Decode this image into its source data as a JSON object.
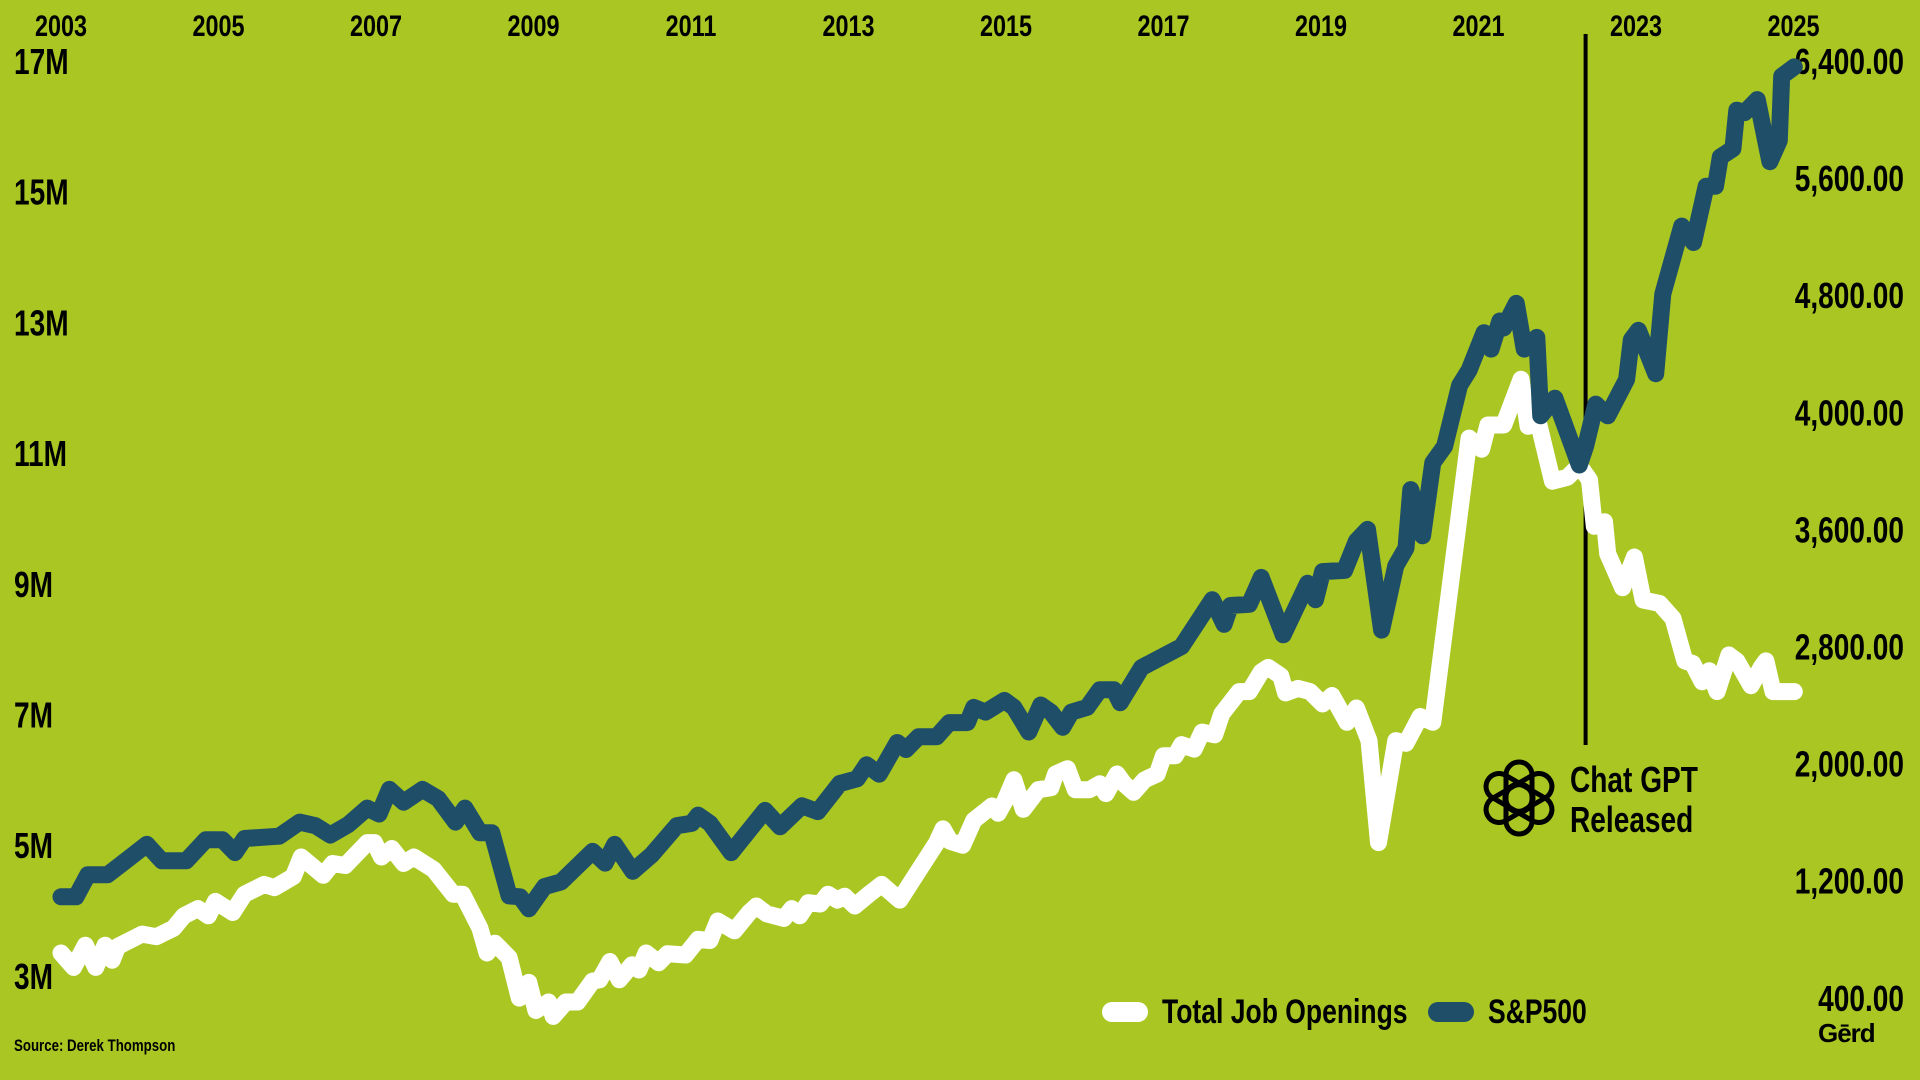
{
  "colors": {
    "background": "#a9c623",
    "job_openings": "#ffffff",
    "sp500": "#1f4e69",
    "annotation": "#000000"
  },
  "source": "Source: Derek Thompson",
  "brand_logo": "Gērd",
  "annotation": {
    "line1": "Chat GPT",
    "line2": "Released",
    "icon": "openai-logo-icon"
  },
  "legend": [
    {
      "label": "Total Job Openings",
      "color": "#ffffff"
    },
    {
      "label": "S&P500",
      "color": "#1f4e69"
    }
  ],
  "chart_data": {
    "type": "line",
    "title": "",
    "x_ticks": [
      "2003",
      "2005",
      "2007",
      "2009",
      "2011",
      "2013",
      "2015",
      "2017",
      "2019",
      "2021",
      "2023",
      "2025"
    ],
    "x_tick_values": [
      2003,
      2005,
      2007,
      2009,
      2011,
      2013,
      2015,
      2017,
      2019,
      2021,
      2023,
      2025
    ],
    "xlim": [
      2003,
      2025
    ],
    "y_left_ticks": [
      "17M",
      "15M",
      "13M",
      "11M",
      "9M",
      "7M",
      "5M",
      "3M"
    ],
    "y_left_tick_values": [
      17,
      15,
      13,
      11,
      9,
      7,
      5,
      3
    ],
    "y_left_lim": [
      3,
      17
    ],
    "y_right_ticks": [
      "6,400.00",
      "5,600.00",
      "4,800.00",
      "4,000.00",
      "3,600.00",
      "2,800.00",
      "2,000.00",
      "1,200.00",
      "400.00"
    ],
    "y_right_tick_values": [
      6400,
      5600,
      4800,
      4000,
      3600,
      2800,
      2000,
      1200,
      400
    ],
    "grid": false,
    "legend_position": "bottom-right",
    "annotation_x": 2022.36,
    "series": [
      {
        "name": "Total Job Openings",
        "axis": "left",
        "unit": "millions",
        "points": [
          [
            2003.0,
            3.35
          ],
          [
            2003.16,
            3.13
          ],
          [
            2003.31,
            3.47
          ],
          [
            2003.44,
            3.13
          ],
          [
            2003.56,
            3.47
          ],
          [
            2003.65,
            3.24
          ],
          [
            2003.72,
            3.45
          ],
          [
            2004.03,
            3.64
          ],
          [
            2004.21,
            3.6
          ],
          [
            2004.43,
            3.73
          ],
          [
            2004.56,
            3.92
          ],
          [
            2004.74,
            4.03
          ],
          [
            2004.87,
            3.92
          ],
          [
            2004.96,
            4.14
          ],
          [
            2005.18,
            3.97
          ],
          [
            2005.33,
            4.25
          ],
          [
            2005.58,
            4.4
          ],
          [
            2005.71,
            4.35
          ],
          [
            2005.95,
            4.52
          ],
          [
            2006.05,
            4.82
          ],
          [
            2006.33,
            4.54
          ],
          [
            2006.45,
            4.72
          ],
          [
            2006.61,
            4.69
          ],
          [
            2006.89,
            5.04
          ],
          [
            2006.98,
            5.04
          ],
          [
            2007.07,
            4.82
          ],
          [
            2007.2,
            4.95
          ],
          [
            2007.35,
            4.72
          ],
          [
            2007.48,
            4.82
          ],
          [
            2007.73,
            4.63
          ],
          [
            2007.98,
            4.25
          ],
          [
            2008.1,
            4.25
          ],
          [
            2008.32,
            3.73
          ],
          [
            2008.41,
            3.35
          ],
          [
            2008.51,
            3.5
          ],
          [
            2008.69,
            3.28
          ],
          [
            2008.82,
            2.66
          ],
          [
            2008.94,
            2.9
          ],
          [
            2009.03,
            2.47
          ],
          [
            2009.19,
            2.6
          ],
          [
            2009.25,
            2.38
          ],
          [
            2009.41,
            2.6
          ],
          [
            2009.56,
            2.6
          ],
          [
            2009.75,
            2.92
          ],
          [
            2009.84,
            2.94
          ],
          [
            2009.97,
            3.22
          ],
          [
            2010.09,
            2.94
          ],
          [
            2010.25,
            3.17
          ],
          [
            2010.34,
            3.09
          ],
          [
            2010.43,
            3.35
          ],
          [
            2010.59,
            3.2
          ],
          [
            2010.7,
            3.34
          ],
          [
            2010.93,
            3.32
          ],
          [
            2011.09,
            3.56
          ],
          [
            2011.24,
            3.54
          ],
          [
            2011.34,
            3.84
          ],
          [
            2011.55,
            3.69
          ],
          [
            2011.74,
            3.97
          ],
          [
            2011.83,
            4.07
          ],
          [
            2011.96,
            3.95
          ],
          [
            2012.18,
            3.88
          ],
          [
            2012.28,
            4.03
          ],
          [
            2012.38,
            3.92
          ],
          [
            2012.49,
            4.12
          ],
          [
            2012.64,
            4.1
          ],
          [
            2012.74,
            4.25
          ],
          [
            2012.86,
            4.16
          ],
          [
            2012.95,
            4.22
          ],
          [
            2013.08,
            4.07
          ],
          [
            2013.26,
            4.25
          ],
          [
            2013.42,
            4.4
          ],
          [
            2013.65,
            4.16
          ],
          [
            2014.12,
            5.04
          ],
          [
            2014.2,
            5.25
          ],
          [
            2014.29,
            5.06
          ],
          [
            2014.45,
            5.0
          ],
          [
            2014.59,
            5.38
          ],
          [
            2014.82,
            5.6
          ],
          [
            2014.9,
            5.49
          ],
          [
            2014.98,
            5.66
          ],
          [
            2015.1,
            6.0
          ],
          [
            2015.22,
            5.55
          ],
          [
            2015.41,
            5.85
          ],
          [
            2015.57,
            5.88
          ],
          [
            2015.63,
            6.09
          ],
          [
            2015.78,
            6.17
          ],
          [
            2015.88,
            5.85
          ],
          [
            2016.06,
            5.85
          ],
          [
            2016.19,
            5.94
          ],
          [
            2016.27,
            5.79
          ],
          [
            2016.41,
            6.09
          ],
          [
            2016.5,
            5.94
          ],
          [
            2016.62,
            5.81
          ],
          [
            2016.76,
            6.0
          ],
          [
            2016.92,
            6.09
          ],
          [
            2017.0,
            6.37
          ],
          [
            2017.15,
            6.37
          ],
          [
            2017.23,
            6.54
          ],
          [
            2017.39,
            6.47
          ],
          [
            2017.49,
            6.73
          ],
          [
            2017.65,
            6.69
          ],
          [
            2017.74,
            7.01
          ],
          [
            2017.96,
            7.35
          ],
          [
            2018.09,
            7.35
          ],
          [
            2018.24,
            7.65
          ],
          [
            2018.33,
            7.72
          ],
          [
            2018.49,
            7.59
          ],
          [
            2018.55,
            7.33
          ],
          [
            2018.71,
            7.4
          ],
          [
            2018.86,
            7.35
          ],
          [
            2019.02,
            7.16
          ],
          [
            2019.14,
            7.29
          ],
          [
            2019.33,
            6.88
          ],
          [
            2019.45,
            7.1
          ],
          [
            2019.61,
            6.6
          ],
          [
            2019.73,
            5.04
          ],
          [
            2019.95,
            6.6
          ],
          [
            2020.08,
            6.56
          ],
          [
            2020.26,
            6.97
          ],
          [
            2020.42,
            6.88
          ],
          [
            2020.88,
            11.23
          ],
          [
            2021.04,
            11.06
          ],
          [
            2021.12,
            11.43
          ],
          [
            2021.32,
            11.43
          ],
          [
            2021.54,
            12.13
          ],
          [
            2021.63,
            11.41
          ],
          [
            2021.76,
            11.47
          ],
          [
            2021.94,
            10.57
          ],
          [
            2022.13,
            10.63
          ],
          [
            2022.28,
            10.81
          ],
          [
            2022.41,
            10.59
          ],
          [
            2022.47,
            9.88
          ],
          [
            2022.6,
            9.95
          ],
          [
            2022.64,
            9.46
          ],
          [
            2022.83,
            8.94
          ],
          [
            2022.98,
            9.41
          ],
          [
            2023.09,
            8.75
          ],
          [
            2023.3,
            8.7
          ],
          [
            2023.47,
            8.47
          ],
          [
            2023.62,
            7.82
          ],
          [
            2023.72,
            7.78
          ],
          [
            2023.84,
            7.5
          ],
          [
            2023.93,
            7.67
          ],
          [
            2024.03,
            7.35
          ],
          [
            2024.18,
            7.91
          ],
          [
            2024.28,
            7.82
          ],
          [
            2024.46,
            7.44
          ],
          [
            2024.59,
            7.72
          ],
          [
            2024.65,
            7.82
          ],
          [
            2024.74,
            7.35
          ],
          [
            2025.01,
            7.35
          ]
        ]
      },
      {
        "name": "S&P500",
        "axis": "right",
        "unit": "index points",
        "points": [
          [
            2003.0,
            1090
          ],
          [
            2003.19,
            1090
          ],
          [
            2003.34,
            1240
          ],
          [
            2003.59,
            1240
          ],
          [
            2004.09,
            1448
          ],
          [
            2004.28,
            1336
          ],
          [
            2004.59,
            1336
          ],
          [
            2004.84,
            1480
          ],
          [
            2005.05,
            1480
          ],
          [
            2005.21,
            1392
          ],
          [
            2005.33,
            1488
          ],
          [
            2005.77,
            1504
          ],
          [
            2006.03,
            1600
          ],
          [
            2006.23,
            1576
          ],
          [
            2006.42,
            1512
          ],
          [
            2006.65,
            1584
          ],
          [
            2006.89,
            1696
          ],
          [
            2007.04,
            1656
          ],
          [
            2007.17,
            1824
          ],
          [
            2007.35,
            1736
          ],
          [
            2007.59,
            1824
          ],
          [
            2007.79,
            1760
          ],
          [
            2008.01,
            1600
          ],
          [
            2008.13,
            1696
          ],
          [
            2008.32,
            1528
          ],
          [
            2008.47,
            1528
          ],
          [
            2008.69,
            1096
          ],
          [
            2008.83,
            1090
          ],
          [
            2008.94,
            1008
          ],
          [
            2009.14,
            1160
          ],
          [
            2009.35,
            1192
          ],
          [
            2009.75,
            1400
          ],
          [
            2009.91,
            1320
          ],
          [
            2010.03,
            1448
          ],
          [
            2010.26,
            1264
          ],
          [
            2010.5,
            1376
          ],
          [
            2010.82,
            1576
          ],
          [
            2011.01,
            1592
          ],
          [
            2011.09,
            1648
          ],
          [
            2011.24,
            1592
          ],
          [
            2011.51,
            1392
          ],
          [
            2011.94,
            1680
          ],
          [
            2012.13,
            1568
          ],
          [
            2012.41,
            1712
          ],
          [
            2012.61,
            1672
          ],
          [
            2012.89,
            1864
          ],
          [
            2013.11,
            1896
          ],
          [
            2013.23,
            1992
          ],
          [
            2013.39,
            1928
          ],
          [
            2013.62,
            2144
          ],
          [
            2013.73,
            2096
          ],
          [
            2013.89,
            2184
          ],
          [
            2014.12,
            2184
          ],
          [
            2014.28,
            2280
          ],
          [
            2014.51,
            2280
          ],
          [
            2014.59,
            2384
          ],
          [
            2014.74,
            2352
          ],
          [
            2014.98,
            2432
          ],
          [
            2015.1,
            2384
          ],
          [
            2015.29,
            2216
          ],
          [
            2015.44,
            2400
          ],
          [
            2015.57,
            2352
          ],
          [
            2015.72,
            2248
          ],
          [
            2015.83,
            2352
          ],
          [
            2016.03,
            2384
          ],
          [
            2016.19,
            2504
          ],
          [
            2016.37,
            2504
          ],
          [
            2016.45,
            2416
          ],
          [
            2016.72,
            2656
          ],
          [
            2017.23,
            2800
          ],
          [
            2017.62,
            3120
          ],
          [
            2017.77,
            2952
          ],
          [
            2017.85,
            3080
          ],
          [
            2018.09,
            3088
          ],
          [
            2018.24,
            3272
          ],
          [
            2018.52,
            2880
          ],
          [
            2018.83,
            3232
          ],
          [
            2018.93,
            3120
          ],
          [
            2019.02,
            3312
          ],
          [
            2019.3,
            3320
          ],
          [
            2019.45,
            3520
          ],
          [
            2019.59,
            3600
          ],
          [
            2019.77,
            2912
          ],
          [
            2019.95,
            3352
          ],
          [
            2020.08,
            3472
          ],
          [
            2020.14,
            3736
          ],
          [
            2020.29,
            3556
          ],
          [
            2020.42,
            3828
          ],
          [
            2020.57,
            3884
          ],
          [
            2020.76,
            4184
          ],
          [
            2020.88,
            4288
          ],
          [
            2021.07,
            4544
          ],
          [
            2021.16,
            4432
          ],
          [
            2021.27,
            4624
          ],
          [
            2021.32,
            4576
          ],
          [
            2021.48,
            4744
          ],
          [
            2021.58,
            4432
          ],
          [
            2021.74,
            4512
          ],
          [
            2021.79,
            3988
          ],
          [
            2021.97,
            4096
          ],
          [
            2022.28,
            3820
          ],
          [
            2022.36,
            3884
          ],
          [
            2022.49,
            4056
          ],
          [
            2022.64,
            3988
          ],
          [
            2022.88,
            4224
          ],
          [
            2022.94,
            4496
          ],
          [
            2023.03,
            4560
          ],
          [
            2023.25,
            4264
          ],
          [
            2023.34,
            4808
          ],
          [
            2023.58,
            5272
          ],
          [
            2023.73,
            5160
          ],
          [
            2023.89,
            5544
          ],
          [
            2024.01,
            5544
          ],
          [
            2024.07,
            5744
          ],
          [
            2024.23,
            5800
          ],
          [
            2024.28,
            6064
          ],
          [
            2024.38,
            6048
          ],
          [
            2024.54,
            6136
          ],
          [
            2024.7,
            5712
          ],
          [
            2024.82,
            5856
          ],
          [
            2024.85,
            6296
          ],
          [
            2025.01,
            6360
          ]
        ]
      }
    ]
  }
}
